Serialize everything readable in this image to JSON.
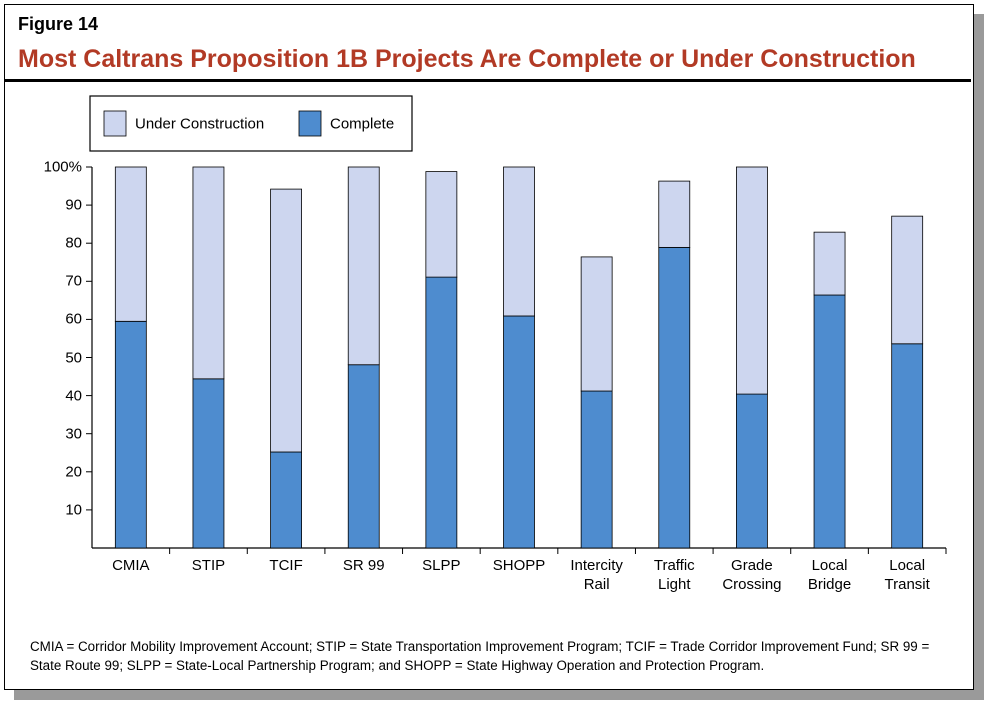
{
  "figure_label": "Figure 14",
  "chart_data": {
    "type": "stacked_bar",
    "title": "Most Caltrans Proposition 1B Projects Are Complete or Under Construction",
    "categories": [
      "CMIA",
      "STIP",
      "TCIF",
      "SR 99",
      "SLPP",
      "SHOPP",
      "Intercity Rail",
      "Traffic Light",
      "Grade Crossing",
      "Local Bridge",
      "Local Transit"
    ],
    "series": [
      {
        "name": "Complete",
        "color": "#4e8ccf",
        "values": [
          59.5,
          44.4,
          25.2,
          48.1,
          71.1,
          60.9,
          41.2,
          78.9,
          40.4,
          66.4,
          53.6
        ]
      },
      {
        "name": "Under Construction",
        "color": "#cdd6ef",
        "values": [
          40.5,
          55.6,
          69.0,
          51.9,
          27.7,
          39.1,
          35.2,
          17.4,
          59.6,
          16.5,
          33.5
        ]
      }
    ],
    "ylim": [
      0,
      100
    ],
    "yticks": [
      10,
      20,
      30,
      40,
      50,
      60,
      70,
      80,
      90,
      {
        "value": 100,
        "label": "100%"
      }
    ],
    "note": "CMIA = Corridor Mobility Improvement Account; STIP = State Transportation Improvement Program; TCIF = Trade Corridor Improvement Fund; SR 99 = State Route 99; SLPP = State-Local Partnership Program; and SHOPP = State Highway Operation and Protection Program."
  }
}
